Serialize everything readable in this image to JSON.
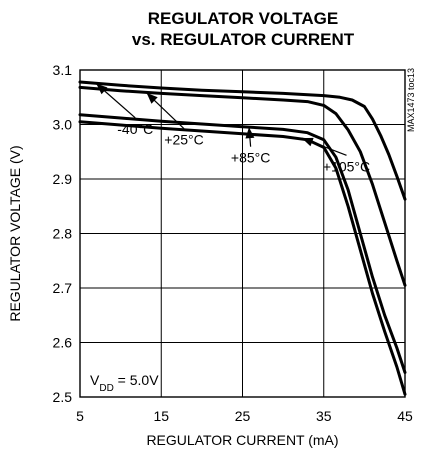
{
  "chart_data": {
    "type": "line",
    "title": [
      "REGULATOR VOLTAGE",
      "vs. REGULATOR CURRENT"
    ],
    "xlabel": "REGULATOR CURRENT (mA)",
    "ylabel": "REGULATOR VOLTAGE (V)",
    "xlim": [
      5,
      45
    ],
    "ylim": [
      2.5,
      3.1
    ],
    "xticks": [
      "5",
      "15",
      "25",
      "35",
      "45"
    ],
    "yticks": [
      "3.1",
      "3.0",
      "2.9",
      "2.8",
      "2.7",
      "2.6",
      "2.5"
    ],
    "grid": true,
    "condition": {
      "main": "V",
      "sub": "DD",
      "rest": " = 5.0V"
    },
    "part_code": "MAX1473 toc13",
    "series": [
      {
        "name": "-40°C",
        "points": [
          [
            5,
            3.078
          ],
          [
            10,
            3.072
          ],
          [
            15,
            3.067
          ],
          [
            20,
            3.063
          ],
          [
            25,
            3.06
          ],
          [
            30,
            3.057
          ],
          [
            35,
            3.053
          ],
          [
            37,
            3.05
          ],
          [
            38.5,
            3.045
          ],
          [
            40,
            3.033
          ],
          [
            41,
            3.01
          ],
          [
            42,
            2.98
          ],
          [
            43,
            2.945
          ],
          [
            44,
            2.905
          ],
          [
            45,
            2.863
          ]
        ]
      },
      {
        "name": "+25°C",
        "points": [
          [
            5,
            3.068
          ],
          [
            10,
            3.062
          ],
          [
            15,
            3.057
          ],
          [
            20,
            3.053
          ],
          [
            25,
            3.049
          ],
          [
            30,
            3.045
          ],
          [
            33,
            3.042
          ],
          [
            35,
            3.035
          ],
          [
            36.5,
            3.02
          ],
          [
            38,
            2.99
          ],
          [
            39.5,
            2.95
          ],
          [
            41,
            2.89
          ],
          [
            42.5,
            2.82
          ],
          [
            44,
            2.75
          ],
          [
            45,
            2.705
          ]
        ]
      },
      {
        "name": "+85°C",
        "points": [
          [
            5,
            3.018
          ],
          [
            10,
            3.012
          ],
          [
            15,
            3.006
          ],
          [
            20,
            3.001
          ],
          [
            25,
            2.996
          ],
          [
            30,
            2.991
          ],
          [
            33,
            2.985
          ],
          [
            35,
            2.972
          ],
          [
            36.5,
            2.94
          ],
          [
            38,
            2.88
          ],
          [
            39.5,
            2.8
          ],
          [
            41,
            2.72
          ],
          [
            42.5,
            2.65
          ],
          [
            44,
            2.59
          ],
          [
            45,
            2.545
          ]
        ]
      },
      {
        "name": "+105°C",
        "points": [
          [
            5,
            3.005
          ],
          [
            10,
            2.999
          ],
          [
            15,
            2.993
          ],
          [
            20,
            2.988
          ],
          [
            25,
            2.983
          ],
          [
            30,
            2.978
          ],
          [
            33,
            2.972
          ],
          [
            35,
            2.958
          ],
          [
            36.5,
            2.92
          ],
          [
            38,
            2.85
          ],
          [
            39.5,
            2.77
          ],
          [
            41,
            2.69
          ],
          [
            42.5,
            2.62
          ],
          [
            44,
            2.555
          ],
          [
            45,
            2.505
          ]
        ]
      }
    ],
    "annotations": [
      {
        "label": "-40°C",
        "tip": [
          7.0,
          3.075
        ],
        "text_at": [
          11.8,
          2.983
        ]
      },
      {
        "label": "+25°C",
        "tip": [
          13.2,
          3.058
        ],
        "text_at": [
          17.8,
          2.963
        ]
      },
      {
        "label": "+85°C",
        "tip": [
          25.8,
          2.995
        ],
        "text_at": [
          26.0,
          2.93
        ]
      },
      {
        "label": "+105°C",
        "tip": [
          32.3,
          2.975
        ],
        "text_at": [
          37.8,
          2.914
        ]
      }
    ]
  }
}
